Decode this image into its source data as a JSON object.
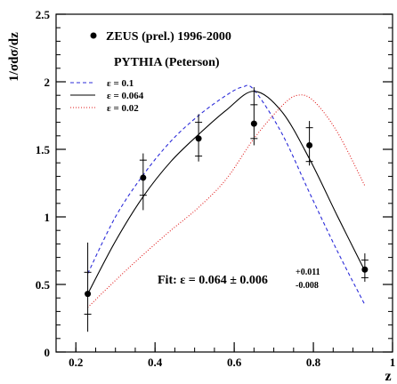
{
  "chart_data": {
    "type": "line",
    "xlabel": "z",
    "ylabel": "1/σdσ/dz",
    "xlim": [
      0.15,
      1.0
    ],
    "ylim": [
      0,
      2.5
    ],
    "x_ticks": [
      0.2,
      0.4,
      0.6,
      0.8,
      1
    ],
    "x_tick_labels": [
      "0.2",
      "0.4",
      "0.6",
      "0.8",
      "1"
    ],
    "y_ticks": [
      0,
      0.5,
      1,
      1.5,
      2,
      2.5
    ],
    "y_tick_labels": [
      "0",
      "0.5",
      "1",
      "1.5",
      "2",
      "2.5"
    ],
    "legend_position": "top-left",
    "data_series": {
      "name": "ZEUS (prel.) 1996-2000",
      "points": [
        {
          "x": 0.23,
          "y": 0.43,
          "stat": [
            0.59,
            0.28
          ],
          "total": [
            0.81,
            0.15
          ]
        },
        {
          "x": 0.37,
          "y": 1.29,
          "stat": [
            1.42,
            1.16
          ],
          "total": [
            1.47,
            1.05
          ]
        },
        {
          "x": 0.51,
          "y": 1.58,
          "stat": [
            1.7,
            1.45
          ],
          "total": [
            1.76,
            1.41
          ]
        },
        {
          "x": 0.65,
          "y": 1.69,
          "stat": [
            1.83,
            1.58
          ],
          "total": [
            1.96,
            1.53
          ]
        },
        {
          "x": 0.79,
          "y": 1.53,
          "stat": [
            1.66,
            1.41
          ],
          "total": [
            1.71,
            1.38
          ]
        },
        {
          "x": 0.93,
          "y": 0.61,
          "stat": [
            0.68,
            0.55
          ],
          "total": [
            0.73,
            0.52
          ]
        }
      ]
    },
    "model_heading": "PYTHIA (Peterson)",
    "series": [
      {
        "name": "ε = 0.1",
        "color": "#2b2bd9",
        "dash": "dashed",
        "x": [
          0.23,
          0.3,
          0.37,
          0.44,
          0.51,
          0.58,
          0.62,
          0.65,
          0.72,
          0.79,
          0.86,
          0.93
        ],
        "y": [
          0.58,
          1.0,
          1.31,
          1.56,
          1.75,
          1.9,
          1.96,
          1.94,
          1.62,
          1.18,
          0.75,
          0.35
        ]
      },
      {
        "name": "ε = 0.064",
        "color": "#000000",
        "dash": "solid",
        "x": [
          0.23,
          0.3,
          0.37,
          0.44,
          0.51,
          0.58,
          0.65,
          0.72,
          0.79,
          0.86,
          0.93
        ],
        "y": [
          0.43,
          0.82,
          1.15,
          1.41,
          1.61,
          1.79,
          1.93,
          1.78,
          1.43,
          1.01,
          0.6
        ]
      },
      {
        "name": "ε = 0.02",
        "color": "#e01b1b",
        "dash": "dotted",
        "x": [
          0.23,
          0.3,
          0.37,
          0.44,
          0.51,
          0.58,
          0.65,
          0.72,
          0.76,
          0.8,
          0.86,
          0.93
        ],
        "y": [
          0.33,
          0.53,
          0.72,
          0.9,
          1.07,
          1.28,
          1.58,
          1.82,
          1.9,
          1.86,
          1.63,
          1.23
        ]
      }
    ],
    "fit_label": "Fit: ε = 0.064 ± 0.006",
    "fit_sup": "+0.011",
    "fit_sub": "-0.008"
  }
}
